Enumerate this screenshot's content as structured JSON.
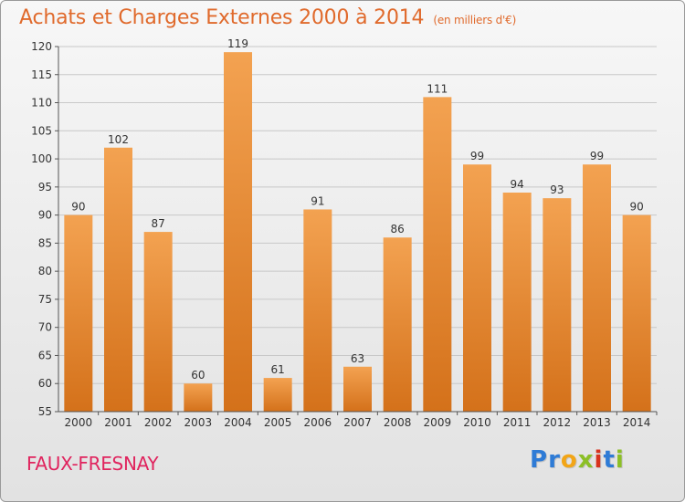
{
  "header": {
    "title": "Achats et Charges Externes 2000 à 2014",
    "subtitle": "(en milliers d'€)"
  },
  "footer": {
    "place": "FAUX-FRESNAY",
    "logo": "Proxiti",
    "logo_colors": [
      "#2e7bd6",
      "#2e7bd6",
      "#f2a516",
      "#8cbf26",
      "#d8321e",
      "#2e7bd6",
      "#8cbf26"
    ]
  },
  "chart_data": {
    "type": "bar",
    "categories": [
      "2000",
      "2001",
      "2002",
      "2003",
      "2004",
      "2005",
      "2006",
      "2007",
      "2008",
      "2009",
      "2010",
      "2011",
      "2012",
      "2013",
      "2014"
    ],
    "values": [
      90,
      102,
      87,
      60,
      119,
      61,
      91,
      63,
      86,
      111,
      99,
      94,
      93,
      99,
      90
    ],
    "data_labels": [
      "90",
      "102",
      "87",
      "60",
      "119",
      "61",
      "91",
      "63",
      "86",
      "111",
      "99",
      "94",
      "93",
      "99",
      "90"
    ],
    "ylim": [
      55,
      120
    ],
    "yticks": [
      55,
      60,
      65,
      70,
      75,
      80,
      85,
      90,
      95,
      100,
      105,
      110,
      115,
      120
    ],
    "grid": true,
    "bar_color": "#ef9340",
    "bar_color_dark": "#d4711a",
    "title_color": "#e06a2c"
  }
}
